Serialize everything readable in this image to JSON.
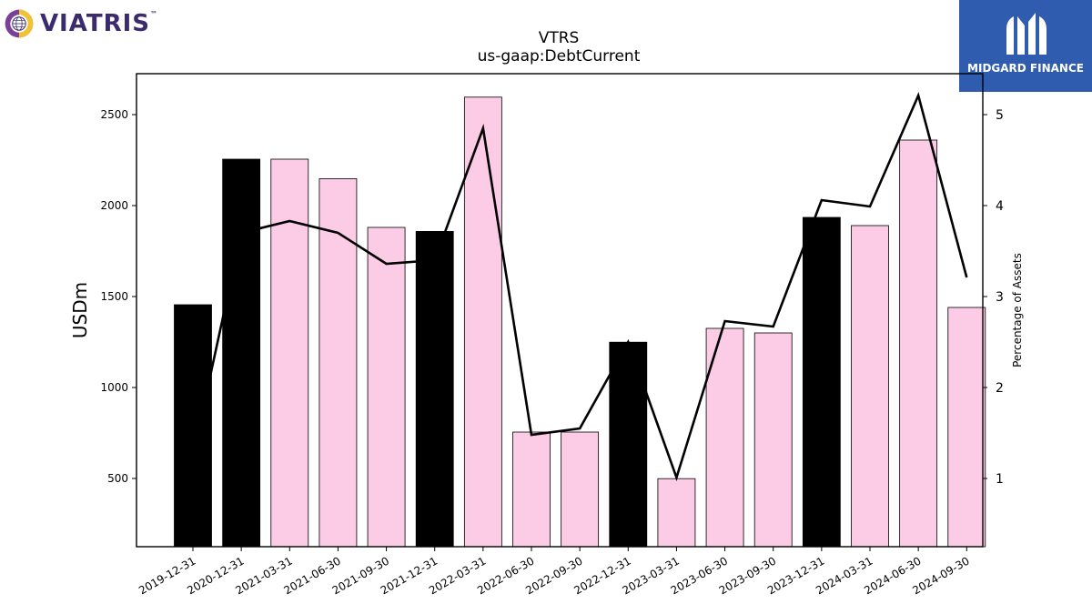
{
  "brand": {
    "left_logo_text": "VIATRIS",
    "left_logo_tm": "™",
    "right_logo_text": "MIDGARD FINANCE",
    "right_logo_color": "#2f5cae",
    "left_logo_color": "#3b2b6e"
  },
  "chart_data": {
    "type": "bar",
    "title": "VTRS",
    "subtitle": "us-gaap:DebtCurrent",
    "ylabel": "USDm",
    "y2label": "Percentage of Assets",
    "ylim": [
      125,
      2725
    ],
    "y2lim": [
      0.25,
      5.45
    ],
    "yticks": [
      500,
      1000,
      1500,
      2000,
      2500
    ],
    "y2ticks": [
      1,
      2,
      3,
      4,
      5
    ],
    "grid": false,
    "categories": [
      "2019-12-31",
      "2020-12-31",
      "2021-03-31",
      "2021-06-30",
      "2021-09-30",
      "2021-12-31",
      "2022-03-31",
      "2022-06-30",
      "2022-09-30",
      "2022-12-31",
      "2023-03-31",
      "2023-06-30",
      "2023-09-30",
      "2023-12-31",
      "2024-03-31",
      "2024-06-30",
      "2024-09-30"
    ],
    "series": [
      {
        "type": "bar",
        "values": [
          1455,
          2255,
          2255,
          2148,
          1880,
          1858,
          2596,
          755,
          755,
          1249,
          499,
          1325,
          1300,
          1935,
          1890,
          2360,
          1440
        ]
      },
      {
        "type": "line",
        "axis": "right",
        "values": [
          1.25,
          3.7,
          3.83,
          3.7,
          3.36,
          3.4,
          4.85,
          1.48,
          1.55,
          2.5,
          1.01,
          2.73,
          2.67,
          4.06,
          3.99,
          5.21,
          3.21
        ]
      }
    ],
    "bar_kinds": [
      "annual",
      "annual",
      "quarter",
      "quarter",
      "quarter",
      "annual",
      "quarter",
      "quarter",
      "quarter",
      "annual",
      "quarter",
      "quarter",
      "quarter",
      "annual",
      "quarter",
      "quarter",
      "quarter"
    ],
    "colors": {
      "annual": "#000000",
      "quarter": "#fccbe6",
      "line": "#000000"
    }
  }
}
